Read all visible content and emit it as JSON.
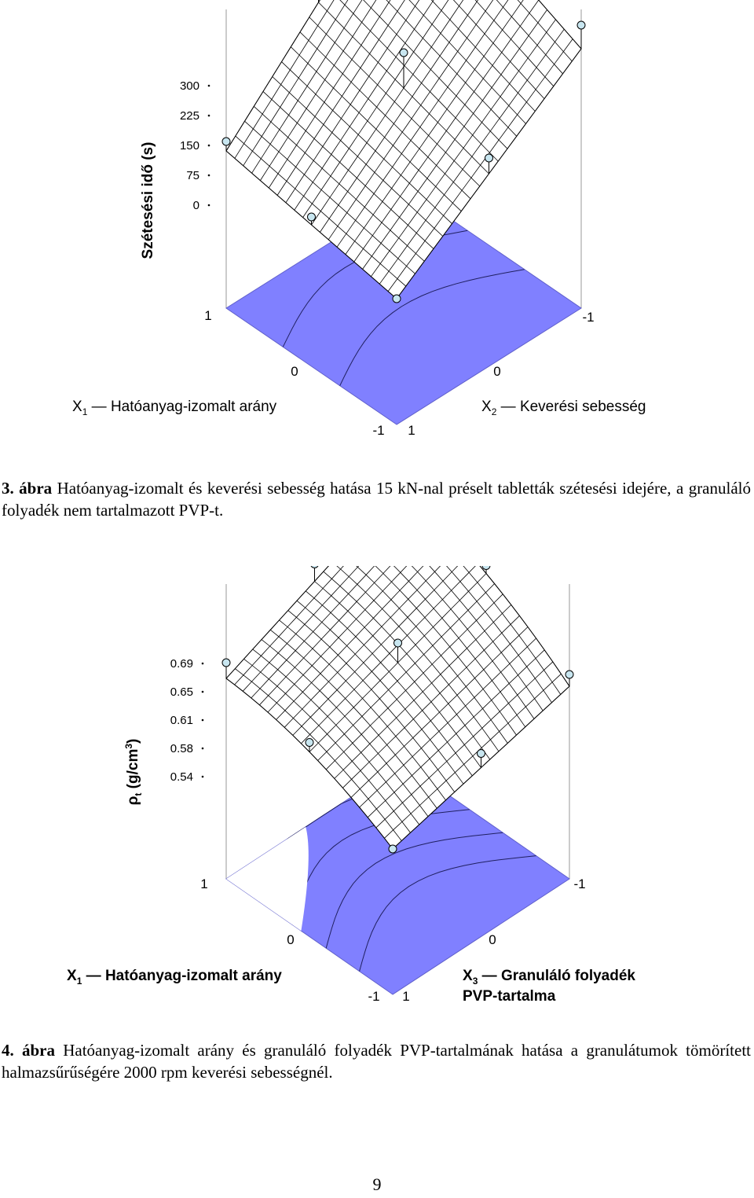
{
  "figure3": {
    "z_label": "Szétesési idő (s)",
    "z_ticks": [
      "300",
      "225",
      "150",
      "75",
      "0"
    ],
    "x1_axis_label": "X",
    "x1_axis_sub": "1",
    "x1_axis_text": "Hatóanyag-izomalt arány",
    "x2_axis_label": "X",
    "x2_axis_sub": "2",
    "x2_axis_text": "Keverési sebesség",
    "left_ticks": [
      "1",
      "0",
      "-1"
    ],
    "right_ticks": [
      "-1",
      "0",
      "1"
    ],
    "caption_number": "3. ábra",
    "caption_text": " Hatóanyag-izomalt és keverési sebesség hatása 15 kN-nal préselt tabletták szétesési idejére, a granuláló folyadék nem tartalmazott PVP-t."
  },
  "figure4": {
    "z_label_main": "ρ",
    "z_label_sub": "t",
    "z_label_unit": " (g/cm",
    "z_label_sup": "3",
    "z_label_close": ")",
    "z_ticks": [
      "0.69",
      "0.65",
      "0.61",
      "0.58",
      "0.54"
    ],
    "x1_axis_label": "X",
    "x1_axis_sub": "1",
    "x1_axis_text": "Hatóanyag-izomalt arány",
    "x3_axis_label": "X",
    "x3_axis_sub": "3",
    "x3_axis_text": "Granuláló folyadék",
    "x3_axis_text2": "PVP-tartalma",
    "left_ticks": [
      "1",
      "0",
      "-1"
    ],
    "right_ticks": [
      "-1",
      "0",
      "1"
    ],
    "caption_number": "4. ábra",
    "caption_text": " Hatóanyag-izomalt arány és granuláló folyadék PVP-tartalmának hatása a granulátumok tömörített halmazsűrűségére 2000 rpm keverési sebességnél."
  },
  "page_number": "9",
  "colors": {
    "floor": "#8080ff",
    "mesh": "#000000",
    "point": "#c8e6f0"
  }
}
